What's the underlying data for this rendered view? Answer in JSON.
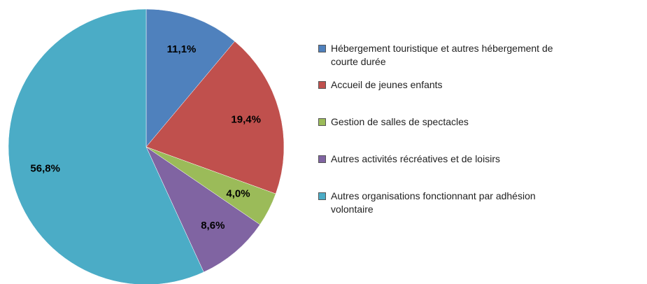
{
  "chart_data": {
    "type": "pie",
    "categories": [
      "Hébergement touristique et autres hébergement de courte durée",
      "Accueil de jeunes enfants",
      "Gestion de salles de spectacles",
      "Autres activités récréatives et de loisirs",
      "Autres organisations fonctionnant par adhésion volontaire"
    ],
    "values": [
      11.1,
      19.4,
      4.0,
      8.6,
      56.8
    ],
    "value_labels": [
      "11,1%",
      "19,4%",
      "4,0%",
      "8,6%",
      "56,8%"
    ],
    "colors": [
      "#4f81bd",
      "#c0504d",
      "#9bbb59",
      "#8064a2",
      "#4bacc6"
    ]
  }
}
